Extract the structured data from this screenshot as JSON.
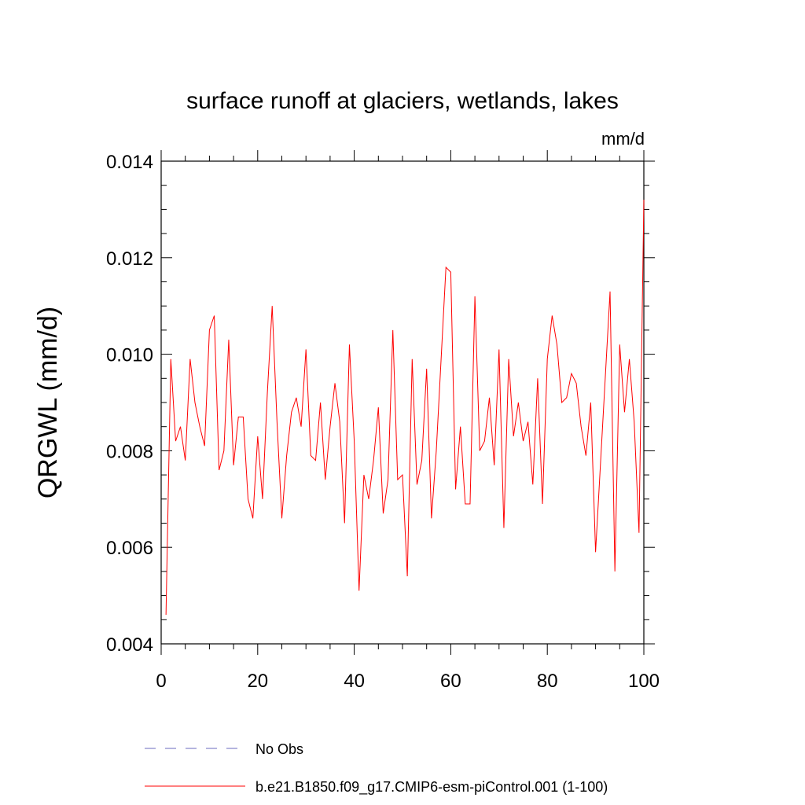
{
  "chart_data": {
    "type": "line",
    "title": "surface runoff at glaciers, wetlands, lakes",
    "units_label": "mm/d",
    "ylabel": "QRGWL  (mm/d)",
    "xlabel": "",
    "xlim": [
      0,
      100
    ],
    "ylim": [
      0.004,
      0.014
    ],
    "x_ticks": [
      0,
      20,
      40,
      60,
      80,
      100
    ],
    "x_tick_labels": [
      "0",
      "20",
      "40",
      "60",
      "80",
      "100"
    ],
    "y_ticks": [
      0.004,
      0.006,
      0.008,
      0.01,
      0.012,
      0.014
    ],
    "y_tick_labels": [
      "0.004",
      "0.006",
      "0.008",
      "0.010",
      "0.012",
      "0.014"
    ],
    "grid": false,
    "legend_position": "bottom",
    "legend": [
      {
        "label": "No Obs",
        "color": "#6b6bbf",
        "style": "dashed"
      },
      {
        "label": "b.e21.B1850.f09_g17.CMIP6-esm-piControl.001 (1-100)",
        "color": "#ff0000",
        "style": "solid"
      }
    ],
    "series": [
      {
        "name": "b.e21.B1850.f09_g17.CMIP6-esm-piControl.001 (1-100)",
        "color": "#ff0000",
        "x": [
          1,
          2,
          3,
          4,
          5,
          6,
          7,
          8,
          9,
          10,
          11,
          12,
          13,
          14,
          15,
          16,
          17,
          18,
          19,
          20,
          21,
          22,
          23,
          24,
          25,
          26,
          27,
          28,
          29,
          30,
          31,
          32,
          33,
          34,
          35,
          36,
          37,
          38,
          39,
          40,
          41,
          42,
          43,
          44,
          45,
          46,
          47,
          48,
          49,
          50,
          51,
          52,
          53,
          54,
          55,
          56,
          57,
          58,
          59,
          60,
          61,
          62,
          63,
          64,
          65,
          66,
          67,
          68,
          69,
          70,
          71,
          72,
          73,
          74,
          75,
          76,
          77,
          78,
          79,
          80,
          81,
          82,
          83,
          84,
          85,
          86,
          87,
          88,
          89,
          90,
          91,
          92,
          93,
          94,
          95,
          96,
          97,
          98,
          99,
          100
        ],
        "values": [
          0.0046,
          0.0099,
          0.0082,
          0.0085,
          0.0078,
          0.0099,
          0.009,
          0.0085,
          0.0081,
          0.0105,
          0.0108,
          0.0076,
          0.008,
          0.0103,
          0.0077,
          0.0087,
          0.0087,
          0.007,
          0.0066,
          0.0083,
          0.007,
          0.0092,
          0.011,
          0.0086,
          0.0066,
          0.0079,
          0.0088,
          0.0091,
          0.0085,
          0.0101,
          0.0079,
          0.0078,
          0.009,
          0.0074,
          0.0085,
          0.0094,
          0.0086,
          0.0065,
          0.0102,
          0.0082,
          0.0051,
          0.0075,
          0.007,
          0.0078,
          0.0089,
          0.0067,
          0.0074,
          0.0105,
          0.0074,
          0.0075,
          0.0054,
          0.0099,
          0.0073,
          0.0078,
          0.0097,
          0.0066,
          0.008,
          0.0099,
          0.0118,
          0.0117,
          0.0072,
          0.0085,
          0.0069,
          0.0069,
          0.0112,
          0.008,
          0.0082,
          0.0091,
          0.0077,
          0.0101,
          0.0064,
          0.0099,
          0.0083,
          0.009,
          0.0082,
          0.0086,
          0.0073,
          0.0095,
          0.0069,
          0.0099,
          0.0108,
          0.0102,
          0.009,
          0.0091,
          0.0096,
          0.0094,
          0.0085,
          0.0079,
          0.009,
          0.0059,
          0.0077,
          0.0095,
          0.0113,
          0.0055,
          0.0102,
          0.0088,
          0.0099,
          0.0086,
          0.0063,
          0.0132
        ]
      }
    ]
  }
}
